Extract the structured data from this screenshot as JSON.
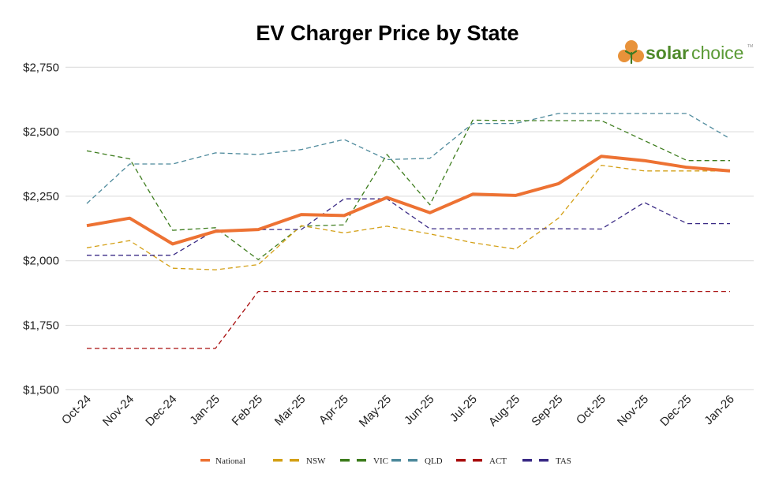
{
  "chart_data": {
    "type": "line",
    "title": "EV Charger Price by State",
    "xlabel": "",
    "ylabel": "",
    "ylim": [
      1500,
      2750
    ],
    "yticks": [
      1500,
      1750,
      2000,
      2250,
      2500,
      2750
    ],
    "ytick_labels": [
      "$1,500",
      "$1,750",
      "$2,000",
      "$2,250",
      "$2,500",
      "$2,750"
    ],
    "grid": true,
    "legend_position": "bottom",
    "categories": [
      "Oct-24",
      "Nov-24",
      "Dec-24",
      "Jan-25",
      "Feb-25",
      "Mar-25",
      "Apr-25",
      "May-25",
      "Jun-25",
      "Jul-25",
      "Aug-25",
      "Sep-25",
      "Oct-25",
      "Nov-25",
      "Dec-25",
      "Jan-26"
    ],
    "series": [
      {
        "name": "National",
        "color": "#ed7233",
        "style": "solid",
        "values": [
          2136,
          2165,
          2065,
          2114,
          2121,
          2179,
          2175,
          2245,
          2186,
          2258,
          2253,
          2299,
          2405,
          2388,
          2362,
          2348
        ]
      },
      {
        "name": "NSW",
        "color": "#d4a017",
        "style": "dashed",
        "values": [
          2050,
          2078,
          1971,
          1965,
          1985,
          2136,
          2108,
          2134,
          2104,
          2070,
          2045,
          2165,
          2370,
          2348,
          2348,
          2348
        ]
      },
      {
        "name": "VIC",
        "color": "#3e7d1e",
        "style": "dashed",
        "values": [
          2426,
          2395,
          2118,
          2128,
          2004,
          2134,
          2139,
          2412,
          2217,
          2545,
          2543,
          2543,
          2543,
          2466,
          2388,
          2388
        ]
      },
      {
        "name": "QLD",
        "color": "#4e8a9c",
        "style": "dashed",
        "values": [
          2222,
          2375,
          2375,
          2418,
          2412,
          2431,
          2470,
          2392,
          2397,
          2532,
          2532,
          2571,
          2571,
          2571,
          2571,
          2473
        ]
      },
      {
        "name": "ACT",
        "color": "#a80d0d",
        "style": "dashed",
        "values": [
          1660,
          1660,
          1660,
          1660,
          1881,
          1881,
          1881,
          1881,
          1881,
          1881,
          1881,
          1881,
          1881,
          1881,
          1881,
          1881
        ]
      },
      {
        "name": "TAS",
        "color": "#3a2a85",
        "style": "dashed",
        "values": [
          2021,
          2021,
          2021,
          2119,
          2121,
          2121,
          2240,
          2240,
          2124,
          2124,
          2124,
          2124,
          2123,
          2226,
          2144,
          2144
        ]
      }
    ]
  },
  "logo": {
    "text_bold": "solar",
    "text_light": "choice",
    "tm": "TM",
    "colors": {
      "orange": "#e8923a",
      "green": "#4f8a2a"
    }
  }
}
